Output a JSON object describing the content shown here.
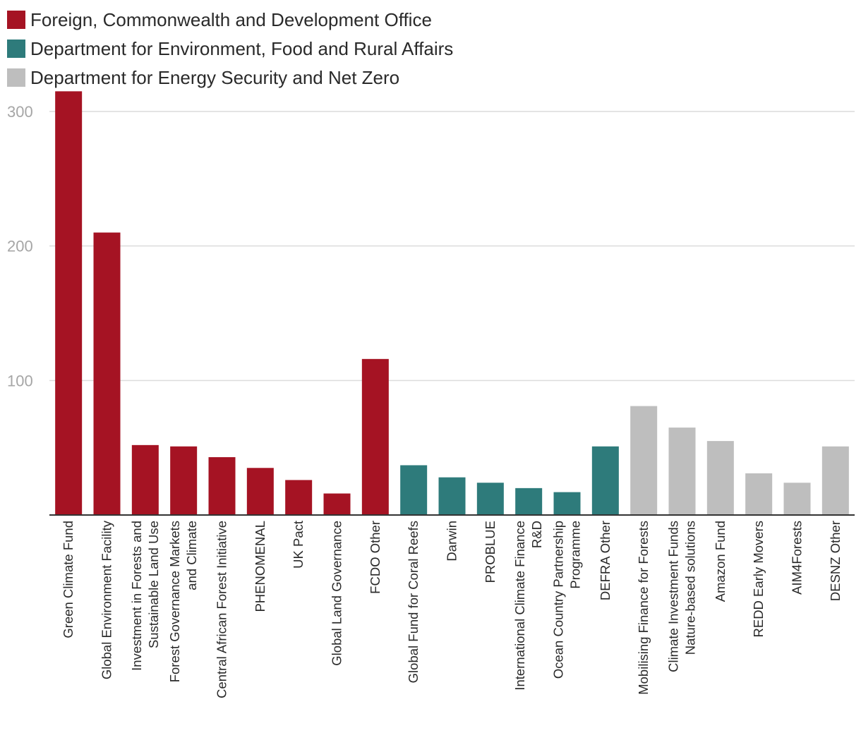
{
  "chart_data": {
    "type": "bar",
    "title": "",
    "xlabel": "",
    "ylabel": "",
    "ylim": [
      0,
      315
    ],
    "yticks": [
      100,
      200,
      300
    ],
    "grid": true,
    "legend_position": "top",
    "legend": [
      {
        "key": "fcdo",
        "label": "Foreign, Commonwealth and Development Office",
        "color": "#a51323"
      },
      {
        "key": "defra",
        "label": "Department for Environment, Food and Rural Affairs",
        "color": "#2e7b7b"
      },
      {
        "key": "desnz",
        "label": "Department for Energy Security and Net Zero",
        "color": "#bebebe"
      }
    ],
    "bars": [
      {
        "label": [
          "Green Climate Fund"
        ],
        "value": 315,
        "group": "fcdo"
      },
      {
        "label": [
          "Global Environment Facility"
        ],
        "value": 210,
        "group": "fcdo"
      },
      {
        "label": [
          "Investment in Forests and",
          "Sustainable Land Use"
        ],
        "value": 52,
        "group": "fcdo"
      },
      {
        "label": [
          "Forest Governance Markets",
          "and Climate"
        ],
        "value": 51,
        "group": "fcdo"
      },
      {
        "label": [
          "Central African Forest Initiative"
        ],
        "value": 43,
        "group": "fcdo"
      },
      {
        "label": [
          "PHENOMENAL"
        ],
        "value": 35,
        "group": "fcdo"
      },
      {
        "label": [
          "UK Pact"
        ],
        "value": 26,
        "group": "fcdo"
      },
      {
        "label": [
          "Global Land Governance"
        ],
        "value": 16,
        "group": "fcdo"
      },
      {
        "label": [
          "FCDO Other"
        ],
        "value": 116,
        "group": "fcdo"
      },
      {
        "label": [
          "Global Fund for Coral Reefs"
        ],
        "value": 37,
        "group": "defra"
      },
      {
        "label": [
          "Darwin"
        ],
        "value": 28,
        "group": "defra"
      },
      {
        "label": [
          "PROBLUE"
        ],
        "value": 24,
        "group": "defra"
      },
      {
        "label": [
          "International Climate Finance",
          "R&D"
        ],
        "value": 20,
        "group": "defra"
      },
      {
        "label": [
          "Ocean Country Partnership",
          "Programme"
        ],
        "value": 17,
        "group": "defra"
      },
      {
        "label": [
          "DEFRA Other"
        ],
        "value": 51,
        "group": "defra"
      },
      {
        "label": [
          "Mobilising Finance for Forests"
        ],
        "value": 81,
        "group": "desnz"
      },
      {
        "label": [
          "Climate Investment Funds",
          "Nature-based solutions"
        ],
        "value": 65,
        "group": "desnz"
      },
      {
        "label": [
          "Amazon Fund"
        ],
        "value": 55,
        "group": "desnz"
      },
      {
        "label": [
          "REDD Early Movers"
        ],
        "value": 31,
        "group": "desnz"
      },
      {
        "label": [
          "AIM4Forests"
        ],
        "value": 24,
        "group": "desnz"
      },
      {
        "label": [
          "DESNZ Other"
        ],
        "value": 51,
        "group": "desnz"
      }
    ]
  }
}
